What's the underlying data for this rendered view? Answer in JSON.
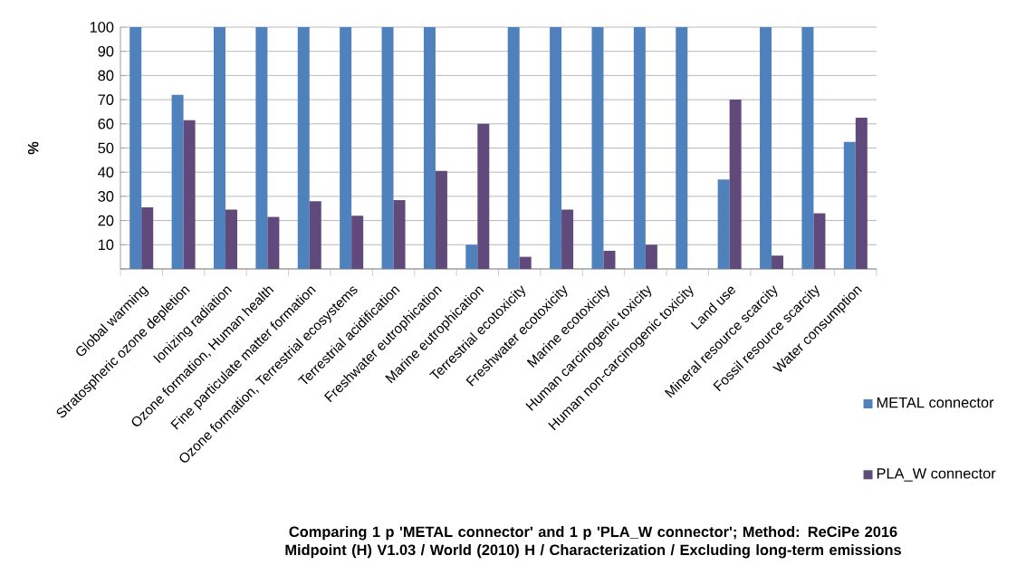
{
  "chart_data": {
    "type": "bar",
    "title": "Comparing 1 p 'METAL connector' and 1 p 'PLA_W connector'; Method: ReCiPe 2016 Midpoint (H) V1.03 / World (2010) H / Characterization / Excluding long-term emissions",
    "ylabel": "%",
    "categories": [
      "Global warming",
      "Stratospheric ozone depletion",
      "Ionizing radiation",
      "Ozone formation, Human health",
      "Fine particulate matter formation",
      "Ozone formation, Terrestrial ecosystems",
      "Terrestrial acidification",
      "Freshwater eutrophication",
      "Marine eutrophication",
      "Terrestrial ecotoxicity",
      "Freshwater ecotoxicity",
      "Marine ecotoxicity",
      "Human carcinogenic toxicity",
      "Human non-carcinogenic toxicity",
      "Land use",
      "Mineral resource scarcity",
      "Fossil resource scarcity",
      "Water consumption"
    ],
    "series": [
      {
        "name": "METAL connector",
        "color": "#4f81bd",
        "values": [
          100,
          72,
          100,
          100,
          100,
          100,
          100,
          100,
          10,
          100,
          100,
          100,
          100,
          100,
          37,
          100,
          100,
          52.5
        ]
      },
      {
        "name": "PLA_W connector",
        "color": "#604a7b",
        "values": [
          25.5,
          61.5,
          24.5,
          21.5,
          28,
          22,
          28.5,
          40.5,
          60,
          5,
          24.5,
          7.5,
          10,
          0,
          70,
          5.5,
          23,
          62.5
        ]
      }
    ],
    "ylim": [
      0,
      100
    ],
    "yticks": [
      {
        "value": 0,
        "label": null
      },
      10,
      20,
      30,
      40,
      50,
      60,
      70,
      80,
      90,
      100
    ],
    "grid": "y",
    "legend": "right"
  }
}
